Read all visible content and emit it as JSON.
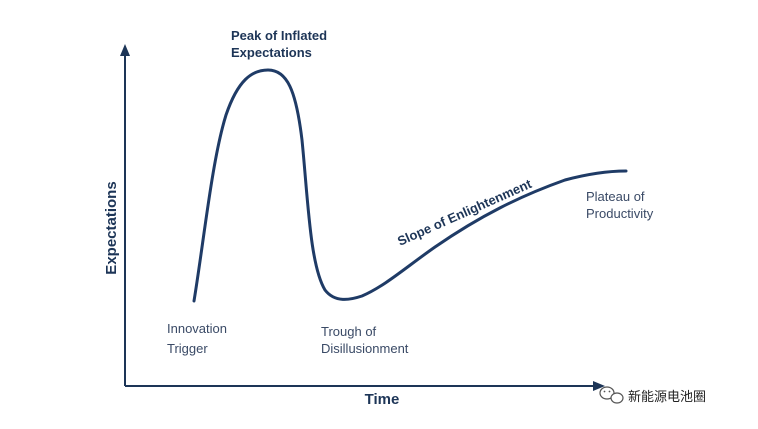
{
  "colors": {
    "axis": "#1d3557",
    "curve": "#1f3b66",
    "text_dark": "#1d3557",
    "text_light": "#3a4a66",
    "watermark": "#222222"
  },
  "axes": {
    "x_label": "Time",
    "y_label": "Expectations"
  },
  "phases": {
    "innovation_trigger": [
      "Innovation",
      "Trigger"
    ],
    "peak": [
      "Peak of Inflated",
      "Expectations"
    ],
    "trough": [
      "Trough of",
      "Disillusionment"
    ],
    "slope": "Slope of Enlightenment",
    "plateau": [
      "Plateau of",
      "Productivity"
    ]
  },
  "watermark": {
    "icon": "wechat-icon",
    "text": "新能源电池圈"
  }
}
